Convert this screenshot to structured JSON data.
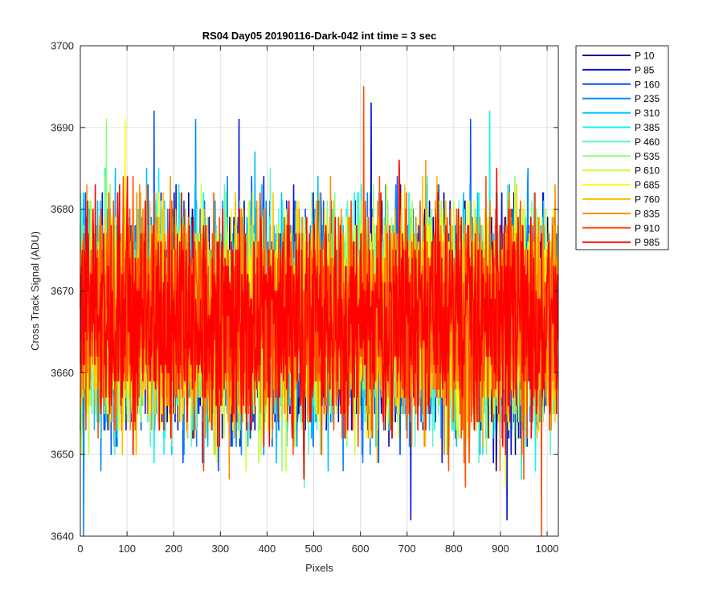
{
  "chart_data": {
    "type": "line",
    "title": "RS04 Day05 20190116-Dark-042 int time = 3 sec",
    "xlabel": "Pixels",
    "ylabel": "Cross Track Signal (ADU)",
    "xlim": [
      0,
      1024
    ],
    "ylim": [
      3640,
      3700
    ],
    "xticks": [
      "0",
      "100",
      "200",
      "300",
      "400",
      "500",
      "600",
      "700",
      "800",
      "900",
      "1000"
    ],
    "yticks": [
      "3640",
      "3650",
      "3660",
      "3670",
      "3680",
      "3690",
      "3700"
    ],
    "grid": true,
    "legend_position": "outside-right",
    "n_pixels": 1024,
    "noise": {
      "mean": 3666.5,
      "stddev": 6.5,
      "min": 3640,
      "max": 3695
    },
    "series": [
      {
        "name": "P 10",
        "color": "#00008F"
      },
      {
        "name": "P 85",
        "color": "#0014D6"
      },
      {
        "name": "P 160",
        "color": "#0050FF"
      },
      {
        "name": "P 235",
        "color": "#0087FF"
      },
      {
        "name": "P 310",
        "color": "#00BCFF"
      },
      {
        "name": "P 385",
        "color": "#10F5EA"
      },
      {
        "name": "P 460",
        "color": "#5BF7C8"
      },
      {
        "name": "P 535",
        "color": "#8CFF73"
      },
      {
        "name": "P 610",
        "color": "#C8FF37"
      },
      {
        "name": "P 685",
        "color": "#FFFF00"
      },
      {
        "name": "P 760",
        "color": "#FFC400"
      },
      {
        "name": "P 835",
        "color": "#FF8C00"
      },
      {
        "name": "P 910",
        "color": "#FF5000"
      },
      {
        "name": "P 985",
        "color": "#FF0000"
      }
    ],
    "peaks": [
      {
        "series": "P 910",
        "x": 607,
        "y": 3695
      },
      {
        "series": "P 160",
        "x": 158,
        "y": 3692
      },
      {
        "series": "P 85",
        "x": 623,
        "y": 3693
      },
      {
        "series": "P 385",
        "x": 877,
        "y": 3692
      },
      {
        "series": "P 685",
        "x": 96,
        "y": 3691
      },
      {
        "series": "P 535",
        "x": 56,
        "y": 3691
      },
      {
        "series": "P 85",
        "x": 340,
        "y": 3691
      },
      {
        "series": "P 235",
        "x": 247,
        "y": 3691
      },
      {
        "series": "P 160",
        "x": 836,
        "y": 3691
      },
      {
        "series": "P 235",
        "x": 7,
        "y": 3640
      },
      {
        "series": "P 910",
        "x": 988,
        "y": 3640
      },
      {
        "series": "P 85",
        "x": 708,
        "y": 3642
      },
      {
        "series": "P 85",
        "x": 914,
        "y": 3642
      }
    ]
  }
}
